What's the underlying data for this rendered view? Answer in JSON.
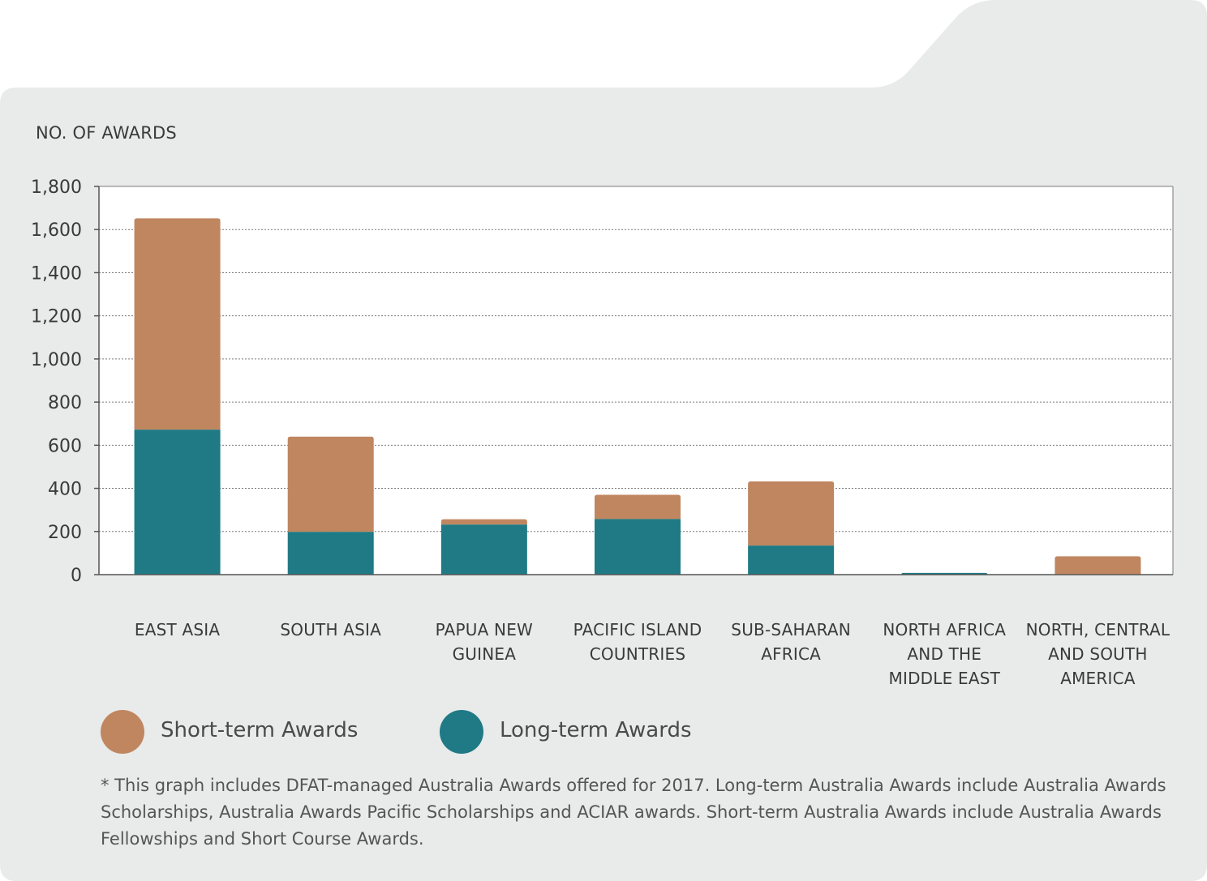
{
  "chart_data": {
    "type": "bar",
    "stacked": true,
    "ylabel": "NO. OF AWARDS",
    "ylim": [
      0,
      1800
    ],
    "yticks": [
      0,
      200,
      400,
      600,
      800,
      1000,
      1200,
      1400,
      1600,
      1800
    ],
    "ytick_labels": [
      "0",
      "200",
      "400",
      "600",
      "800",
      "1,000",
      "1,200",
      "1,400",
      "1,600",
      "1,800"
    ],
    "grid": true,
    "legend_position": "bottom-left",
    "categories": [
      [
        "EAST ASIA"
      ],
      [
        "SOUTH ASIA"
      ],
      [
        "PAPUA NEW",
        "GUINEA"
      ],
      [
        "PACIFIC ISLAND",
        "COUNTRIES"
      ],
      [
        "SUB-SAHARAN",
        "AFRICA"
      ],
      [
        "NORTH AFRICA",
        "AND THE",
        "MIDDLE EAST"
      ],
      [
        "NORTH, CENTRAL",
        "AND SOUTH",
        "AMERICA"
      ]
    ],
    "series": [
      {
        "name": "Long-term Awards",
        "color": "#1f7a85",
        "values": [
          672,
          198,
          232,
          258,
          135,
          8,
          0
        ]
      },
      {
        "name": "Short-term Awards",
        "color": "#c08660",
        "values": [
          980,
          442,
          25,
          112,
          297,
          0,
          85
        ]
      }
    ]
  },
  "legend": {
    "items": [
      {
        "label": "Short-term Awards",
        "color": "#c08660"
      },
      {
        "label": "Long-term Awards",
        "color": "#1f7a85"
      }
    ]
  },
  "footnote": "* This graph includes DFAT-managed Australia Awards offered for 2017. Long-term Australia Awards include Australia Awards Scholarships, Australia Awards Pacific Scholarships and ACIAR awards. Short-term Australia Awards include Australia Awards Fellowships and Short Course Awards."
}
